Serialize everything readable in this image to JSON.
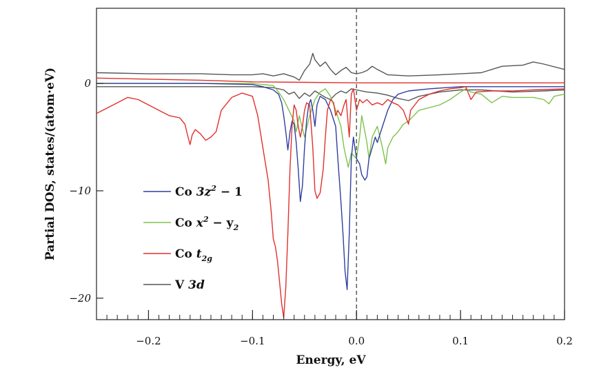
{
  "chart_data": {
    "type": "line",
    "title": "",
    "xlabel": "Energy, eV",
    "ylabel": "Partial DOS, states/(atom·eV)",
    "xlim": [
      -0.25,
      0.2
    ],
    "ylim": [
      -22,
      7
    ],
    "x_ticks": [
      -0.2,
      -0.1,
      0.0,
      0.1,
      0.2
    ],
    "x_tick_labels": [
      "−0.2",
      "−0.1",
      "0.0",
      "0.1",
      "0.2"
    ],
    "y_ticks": [
      0,
      -10,
      -20
    ],
    "y_tick_labels": [
      "0",
      "−10",
      "−20"
    ],
    "fermi_level": 0.0,
    "legend_position": "lower-left",
    "legend_entries": [
      {
        "prefix": "Co ",
        "main": "3z",
        "sup": "2",
        "rest": " − 1",
        "color": "#2f3e9e"
      },
      {
        "prefix": "Co ",
        "main": "x",
        "sup": "2",
        "rest": " − y",
        "sub": "2",
        "color": "#7dc24b"
      },
      {
        "prefix": "Co ",
        "main": "t",
        "sub": "2g",
        "color": "#e0302b"
      },
      {
        "prefix": "V ",
        "main": "3d",
        "color": "#555555"
      }
    ],
    "series": [
      {
        "color": "#555555",
        "points": [
          [
            -0.25,
            1.0
          ],
          [
            -0.2,
            0.9
          ],
          [
            -0.15,
            0.9
          ],
          [
            -0.12,
            0.8
          ],
          [
            -0.1,
            0.8
          ],
          [
            -0.09,
            0.9
          ],
          [
            -0.08,
            0.7
          ],
          [
            -0.07,
            0.9
          ],
          [
            -0.06,
            0.6
          ],
          [
            -0.055,
            0.3
          ],
          [
            -0.05,
            1.2
          ],
          [
            -0.045,
            1.8
          ],
          [
            -0.042,
            2.8
          ],
          [
            -0.04,
            2.2
          ],
          [
            -0.035,
            1.6
          ],
          [
            -0.03,
            2.0
          ],
          [
            -0.025,
            1.3
          ],
          [
            -0.02,
            0.8
          ],
          [
            -0.015,
            1.2
          ],
          [
            -0.01,
            1.5
          ],
          [
            -0.005,
            1.0
          ],
          [
            0.0,
            0.9
          ],
          [
            0.005,
            1.0
          ],
          [
            0.01,
            1.2
          ],
          [
            0.015,
            1.6
          ],
          [
            0.02,
            1.3
          ],
          [
            0.03,
            0.8
          ],
          [
            0.05,
            0.7
          ],
          [
            0.08,
            0.8
          ],
          [
            0.1,
            0.9
          ],
          [
            0.12,
            1.0
          ],
          [
            0.14,
            1.6
          ],
          [
            0.16,
            1.7
          ],
          [
            0.17,
            2.0
          ],
          [
            0.18,
            1.8
          ],
          [
            0.2,
            1.3
          ]
        ]
      },
      {
        "color": "#555555",
        "points": [
          [
            -0.25,
            -0.3
          ],
          [
            -0.2,
            -0.3
          ],
          [
            -0.15,
            -0.3
          ],
          [
            -0.1,
            -0.3
          ],
          [
            -0.08,
            -0.4
          ],
          [
            -0.07,
            -0.6
          ],
          [
            -0.065,
            -1.0
          ],
          [
            -0.06,
            -0.8
          ],
          [
            -0.055,
            -1.4
          ],
          [
            -0.05,
            -0.9
          ],
          [
            -0.045,
            -1.2
          ],
          [
            -0.04,
            -0.7
          ],
          [
            -0.035,
            -1.0
          ],
          [
            -0.03,
            -1.3
          ],
          [
            -0.025,
            -1.5
          ],
          [
            -0.02,
            -1.0
          ],
          [
            -0.015,
            -0.7
          ],
          [
            -0.01,
            -0.9
          ],
          [
            -0.005,
            -0.5
          ],
          [
            0.0,
            -0.6
          ],
          [
            0.01,
            -0.8
          ],
          [
            0.02,
            -0.9
          ],
          [
            0.03,
            -1.1
          ],
          [
            0.04,
            -1.4
          ],
          [
            0.05,
            -1.6
          ],
          [
            0.06,
            -1.2
          ],
          [
            0.08,
            -0.8
          ],
          [
            0.1,
            -0.6
          ],
          [
            0.12,
            -0.6
          ],
          [
            0.15,
            -0.8
          ],
          [
            0.18,
            -0.7
          ],
          [
            0.2,
            -0.6
          ]
        ]
      },
      {
        "color": "#7dc24b",
        "points": [
          [
            -0.25,
            0.0
          ],
          [
            -0.15,
            0.0
          ],
          [
            -0.1,
            0.0
          ],
          [
            -0.08,
            -0.2
          ],
          [
            -0.075,
            -0.8
          ],
          [
            -0.07,
            -1.5
          ],
          [
            -0.065,
            -2.5
          ],
          [
            -0.06,
            -3.5
          ],
          [
            -0.058,
            -4.5
          ],
          [
            -0.055,
            -3.0
          ],
          [
            -0.05,
            -5.0
          ],
          [
            -0.045,
            -3.0
          ],
          [
            -0.04,
            -1.5
          ],
          [
            -0.035,
            -0.8
          ],
          [
            -0.03,
            -0.5
          ],
          [
            -0.025,
            -1.2
          ],
          [
            -0.02,
            -2.5
          ],
          [
            -0.015,
            -4.0
          ],
          [
            -0.012,
            -6.0
          ],
          [
            -0.008,
            -7.8
          ],
          [
            -0.005,
            -6.5
          ],
          [
            0.0,
            -7.0
          ],
          [
            0.003,
            -5.0
          ],
          [
            0.005,
            -3.0
          ],
          [
            0.01,
            -5.5
          ],
          [
            0.012,
            -7.0
          ],
          [
            0.015,
            -5.0
          ],
          [
            0.02,
            -4.0
          ],
          [
            0.025,
            -6.0
          ],
          [
            0.028,
            -7.5
          ],
          [
            0.03,
            -6.0
          ],
          [
            0.035,
            -5.0
          ],
          [
            0.04,
            -4.5
          ],
          [
            0.045,
            -3.8
          ],
          [
            0.05,
            -3.5
          ],
          [
            0.06,
            -2.5
          ],
          [
            0.08,
            -2.0
          ],
          [
            0.09,
            -1.5
          ],
          [
            0.1,
            -0.8
          ],
          [
            0.105,
            -0.5
          ],
          [
            0.11,
            -0.8
          ],
          [
            0.12,
            -1.0
          ],
          [
            0.13,
            -1.8
          ],
          [
            0.14,
            -1.2
          ],
          [
            0.15,
            -1.3
          ],
          [
            0.17,
            -1.3
          ],
          [
            0.18,
            -1.5
          ],
          [
            0.185,
            -1.9
          ],
          [
            0.19,
            -1.2
          ],
          [
            0.2,
            -1.0
          ]
        ]
      },
      {
        "color": "#2f3e9e",
        "points": [
          [
            -0.25,
            0.0
          ],
          [
            -0.15,
            0.0
          ],
          [
            -0.1,
            -0.1
          ],
          [
            -0.09,
            -0.3
          ],
          [
            -0.08,
            -0.6
          ],
          [
            -0.075,
            -1.0
          ],
          [
            -0.072,
            -1.8
          ],
          [
            -0.07,
            -3.0
          ],
          [
            -0.068,
            -4.5
          ],
          [
            -0.066,
            -6.2
          ],
          [
            -0.064,
            -4.5
          ],
          [
            -0.062,
            -3.5
          ],
          [
            -0.06,
            -3.8
          ],
          [
            -0.058,
            -5.5
          ],
          [
            -0.056,
            -8.0
          ],
          [
            -0.054,
            -11.0
          ],
          [
            -0.052,
            -9.5
          ],
          [
            -0.05,
            -6.0
          ],
          [
            -0.048,
            -3.5
          ],
          [
            -0.046,
            -2.0
          ],
          [
            -0.044,
            -1.5
          ],
          [
            -0.042,
            -2.5
          ],
          [
            -0.04,
            -4.0
          ],
          [
            -0.038,
            -2.0
          ],
          [
            -0.035,
            -1.2
          ],
          [
            -0.03,
            -1.5
          ],
          [
            -0.025,
            -2.5
          ],
          [
            -0.02,
            -4.0
          ],
          [
            -0.018,
            -7.0
          ],
          [
            -0.015,
            -11.0
          ],
          [
            -0.013,
            -14.0
          ],
          [
            -0.011,
            -17.5
          ],
          [
            -0.009,
            -19.2
          ],
          [
            -0.007,
            -14.0
          ],
          [
            -0.005,
            -7.0
          ],
          [
            -0.003,
            -5.0
          ],
          [
            0.0,
            -7.0
          ],
          [
            0.003,
            -7.5
          ],
          [
            0.005,
            -8.5
          ],
          [
            0.008,
            -9.0
          ],
          [
            0.01,
            -8.7
          ],
          [
            0.012,
            -7.0
          ],
          [
            0.015,
            -6.0
          ],
          [
            0.018,
            -5.0
          ],
          [
            0.02,
            -5.5
          ],
          [
            0.025,
            -4.0
          ],
          [
            0.03,
            -2.5
          ],
          [
            0.035,
            -1.5
          ],
          [
            0.04,
            -1.0
          ],
          [
            0.05,
            -0.7
          ],
          [
            0.07,
            -0.5
          ],
          [
            0.1,
            -0.3
          ],
          [
            0.15,
            -0.3
          ],
          [
            0.2,
            -0.3
          ]
        ]
      },
      {
        "color": "#e0302b",
        "points": [
          [
            -0.25,
            -2.8
          ],
          [
            -0.24,
            -2.3
          ],
          [
            -0.23,
            -1.8
          ],
          [
            -0.22,
            -1.3
          ],
          [
            -0.21,
            -1.5
          ],
          [
            -0.2,
            -2.0
          ],
          [
            -0.19,
            -2.5
          ],
          [
            -0.18,
            -3.0
          ],
          [
            -0.17,
            -3.2
          ],
          [
            -0.165,
            -3.8
          ],
          [
            -0.162,
            -5.0
          ],
          [
            -0.16,
            -5.7
          ],
          [
            -0.158,
            -4.8
          ],
          [
            -0.155,
            -4.3
          ],
          [
            -0.15,
            -4.7
          ],
          [
            -0.145,
            -5.3
          ],
          [
            -0.14,
            -5.0
          ],
          [
            -0.135,
            -4.5
          ],
          [
            -0.13,
            -2.5
          ],
          [
            -0.12,
            -1.3
          ],
          [
            -0.11,
            -0.9
          ],
          [
            -0.1,
            -1.2
          ],
          [
            -0.095,
            -3.0
          ],
          [
            -0.09,
            -6.0
          ],
          [
            -0.085,
            -9.0
          ],
          [
            -0.082,
            -12.0
          ],
          [
            -0.08,
            -14.5
          ],
          [
            -0.078,
            -15.2
          ],
          [
            -0.076,
            -16.5
          ],
          [
            -0.074,
            -18.5
          ],
          [
            -0.072,
            -20.5
          ],
          [
            -0.07,
            -21.8
          ],
          [
            -0.068,
            -19.0
          ],
          [
            -0.066,
            -14.0
          ],
          [
            -0.064,
            -8.0
          ],
          [
            -0.062,
            -4.0
          ],
          [
            -0.06,
            -2.0
          ],
          [
            -0.058,
            -2.5
          ],
          [
            -0.056,
            -4.0
          ],
          [
            -0.054,
            -5.0
          ],
          [
            -0.052,
            -4.0
          ],
          [
            -0.05,
            -2.5
          ],
          [
            -0.048,
            -1.8
          ],
          [
            -0.045,
            -2.0
          ],
          [
            -0.042,
            -6.0
          ],
          [
            -0.04,
            -10.0
          ],
          [
            -0.038,
            -10.7
          ],
          [
            -0.035,
            -10.2
          ],
          [
            -0.032,
            -8.0
          ],
          [
            -0.03,
            -5.0
          ],
          [
            -0.028,
            -2.5
          ],
          [
            -0.025,
            -1.5
          ],
          [
            -0.022,
            -1.8
          ],
          [
            -0.02,
            -3.0
          ],
          [
            -0.018,
            -2.5
          ],
          [
            -0.015,
            -3.0
          ],
          [
            -0.012,
            -2.0
          ],
          [
            -0.01,
            -1.5
          ],
          [
            -0.007,
            -5.0
          ],
          [
            -0.005,
            -1.0
          ],
          [
            -0.003,
            -0.5
          ],
          [
            0.0,
            -2.5
          ],
          [
            0.003,
            -1.5
          ],
          [
            0.006,
            -1.8
          ],
          [
            0.01,
            -1.5
          ],
          [
            0.015,
            -2.0
          ],
          [
            0.02,
            -1.8
          ],
          [
            0.025,
            -2.0
          ],
          [
            0.03,
            -1.5
          ],
          [
            0.035,
            -1.8
          ],
          [
            0.04,
            -2.0
          ],
          [
            0.045,
            -2.5
          ],
          [
            0.05,
            -3.8
          ],
          [
            0.052,
            -2.5
          ],
          [
            0.06,
            -1.5
          ],
          [
            0.07,
            -1.0
          ],
          [
            0.08,
            -0.7
          ],
          [
            0.09,
            -0.5
          ],
          [
            0.1,
            -0.4
          ],
          [
            0.105,
            -0.3
          ],
          [
            0.11,
            -1.5
          ],
          [
            0.115,
            -0.8
          ],
          [
            0.13,
            -0.7
          ],
          [
            0.15,
            -0.7
          ],
          [
            0.17,
            -0.6
          ],
          [
            0.2,
            -0.5
          ]
        ]
      },
      {
        "color": "#e0302b",
        "points": [
          [
            -0.25,
            0.5
          ],
          [
            -0.2,
            0.4
          ],
          [
            -0.15,
            0.3
          ],
          [
            -0.1,
            0.15
          ],
          [
            -0.05,
            0.1
          ],
          [
            0.0,
            0.05
          ],
          [
            0.05,
            0.05
          ],
          [
            0.1,
            0.05
          ],
          [
            0.15,
            0.05
          ],
          [
            0.2,
            0.05
          ]
        ]
      }
    ]
  }
}
